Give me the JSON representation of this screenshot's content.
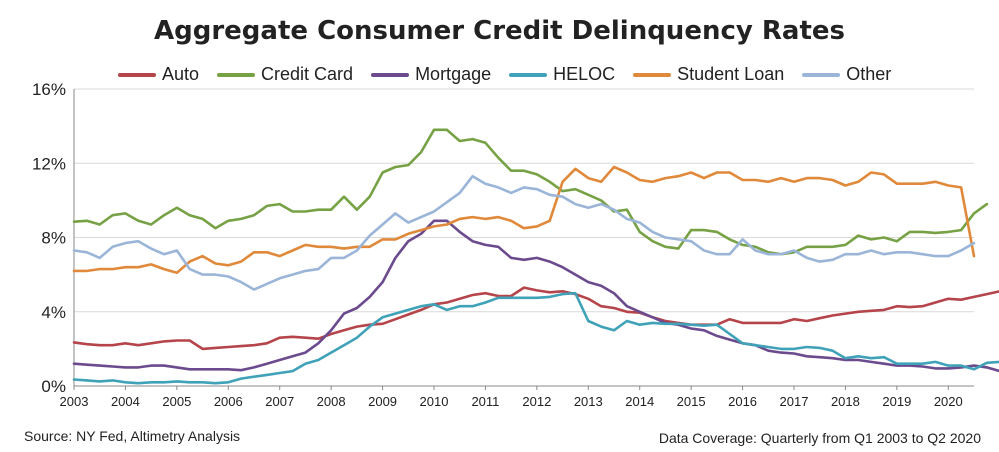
{
  "chart_data": {
    "type": "line",
    "title": "Aggregate Consumer Credit Delinquency Rates",
    "ylim": [
      0,
      16
    ],
    "yticks": [
      "0%",
      "4%",
      "8%",
      "12%",
      "16%"
    ],
    "ytick_values": [
      0,
      4,
      8,
      12,
      16
    ],
    "xticks": [
      "2003",
      "2004",
      "2005",
      "2006",
      "2007",
      "2008",
      "2009",
      "2010",
      "2011",
      "2012",
      "2013",
      "2014",
      "2015",
      "2016",
      "2017",
      "2018",
      "2019",
      "2020"
    ],
    "x_start": 2003.0,
    "x_end": 2020.5,
    "x_step": 0.25,
    "grid": "horizontal",
    "legend_position": "top",
    "series": [
      {
        "name": "Auto",
        "color": "#b5454b",
        "values": [
          2.35,
          2.25,
          2.2,
          2.2,
          2.3,
          2.2,
          2.3,
          2.4,
          2.45,
          2.45,
          2.0,
          2.05,
          2.1,
          2.15,
          2.2,
          2.3,
          2.6,
          2.65,
          2.6,
          2.55,
          2.8,
          3.0,
          3.2,
          3.3,
          3.35,
          3.6,
          3.85,
          4.1,
          4.4,
          4.5,
          4.7,
          4.9,
          5.0,
          4.85,
          4.85,
          5.3,
          5.15,
          5.05,
          5.1,
          4.95,
          4.7,
          4.3,
          4.2,
          4.0,
          3.95,
          3.7,
          3.5,
          3.4,
          3.3,
          3.3,
          3.3,
          3.6,
          3.4,
          3.4,
          3.4,
          3.4,
          3.6,
          3.5,
          3.65,
          3.8,
          3.9,
          4.0,
          4.05,
          4.1,
          4.3,
          4.25,
          4.3,
          4.5,
          4.7,
          4.65,
          4.8,
          4.95,
          5.1,
          5.05
        ]
      },
      {
        "name": "Credit Card",
        "color": "#77a145",
        "values": [
          8.85,
          8.9,
          8.7,
          9.2,
          9.3,
          8.9,
          8.7,
          9.2,
          9.6,
          9.2,
          9.0,
          8.5,
          8.9,
          9.0,
          9.2,
          9.7,
          9.8,
          9.4,
          9.4,
          9.5,
          9.5,
          10.2,
          9.5,
          10.2,
          11.5,
          11.8,
          11.9,
          12.6,
          13.8,
          13.8,
          13.2,
          13.3,
          13.1,
          12.3,
          11.6,
          11.6,
          11.4,
          11.0,
          10.5,
          10.6,
          10.3,
          10.0,
          9.4,
          9.5,
          8.3,
          7.8,
          7.5,
          7.4,
          8.4,
          8.4,
          8.3,
          7.9,
          7.6,
          7.5,
          7.2,
          7.1,
          7.2,
          7.5,
          7.5,
          7.5,
          7.6,
          8.1,
          7.9,
          8.0,
          7.8,
          8.3,
          8.3,
          8.25,
          8.3,
          8.4,
          9.3,
          9.8
        ]
      },
      {
        "name": "Mortgage",
        "color": "#6b4b8e",
        "values": [
          1.2,
          1.15,
          1.1,
          1.05,
          1.0,
          1.0,
          1.1,
          1.1,
          1.0,
          0.9,
          0.9,
          0.9,
          0.9,
          0.85,
          1.0,
          1.2,
          1.4,
          1.6,
          1.8,
          2.3,
          3.0,
          3.9,
          4.2,
          4.8,
          5.6,
          6.9,
          7.8,
          8.2,
          8.9,
          8.9,
          8.3,
          7.8,
          7.6,
          7.5,
          6.9,
          6.8,
          6.9,
          6.7,
          6.4,
          6.0,
          5.6,
          5.4,
          5.0,
          4.3,
          4.0,
          3.7,
          3.4,
          3.3,
          3.1,
          3.0,
          2.7,
          2.5,
          2.3,
          2.2,
          1.9,
          1.8,
          1.75,
          1.6,
          1.55,
          1.5,
          1.4,
          1.4,
          1.3,
          1.2,
          1.1,
          1.1,
          1.05,
          0.95,
          0.95,
          1.0,
          1.1,
          1.0,
          0.8
        ]
      },
      {
        "name": "HELOC",
        "color": "#3fa2b8",
        "values": [
          0.35,
          0.3,
          0.25,
          0.3,
          0.2,
          0.15,
          0.2,
          0.2,
          0.25,
          0.2,
          0.2,
          0.15,
          0.2,
          0.4,
          0.5,
          0.6,
          0.7,
          0.8,
          1.2,
          1.4,
          1.8,
          2.2,
          2.6,
          3.2,
          3.7,
          3.9,
          4.1,
          4.3,
          4.4,
          4.1,
          4.3,
          4.3,
          4.5,
          4.75,
          4.75,
          4.75,
          4.75,
          4.8,
          4.95,
          5.0,
          3.5,
          3.2,
          3.0,
          3.5,
          3.3,
          3.4,
          3.35,
          3.35,
          3.3,
          3.25,
          3.3,
          2.8,
          2.3,
          2.2,
          2.1,
          2.0,
          2.0,
          2.1,
          2.05,
          1.9,
          1.5,
          1.6,
          1.5,
          1.55,
          1.2,
          1.2,
          1.2,
          1.3,
          1.1,
          1.1,
          0.9,
          1.25,
          1.3
        ]
      },
      {
        "name": "Student Loan",
        "color": "#e0893a",
        "values": [
          6.2,
          6.2,
          6.3,
          6.3,
          6.4,
          6.4,
          6.55,
          6.3,
          6.1,
          6.7,
          7.0,
          6.6,
          6.5,
          6.7,
          7.2,
          7.2,
          7.0,
          7.3,
          7.6,
          7.5,
          7.5,
          7.4,
          7.5,
          7.5,
          7.9,
          7.9,
          8.2,
          8.4,
          8.6,
          8.7,
          9.0,
          9.1,
          9.0,
          9.1,
          8.9,
          8.5,
          8.6,
          8.9,
          11.0,
          11.7,
          11.2,
          11.0,
          11.8,
          11.5,
          11.1,
          11.0,
          11.2,
          11.3,
          11.5,
          11.2,
          11.5,
          11.5,
          11.1,
          11.1,
          11.0,
          11.2,
          11.0,
          11.2,
          11.2,
          11.1,
          10.8,
          11.0,
          11.5,
          11.4,
          10.9,
          10.9,
          10.9,
          11.0,
          10.8,
          10.7,
          7.0
        ]
      },
      {
        "name": "Other",
        "color": "#9ab5d8",
        "values": [
          7.3,
          7.2,
          6.9,
          7.5,
          7.7,
          7.8,
          7.4,
          7.1,
          7.3,
          6.3,
          6.0,
          6.0,
          5.9,
          5.6,
          5.2,
          5.5,
          5.8,
          6.0,
          6.2,
          6.3,
          6.9,
          6.9,
          7.3,
          8.1,
          8.7,
          9.3,
          8.8,
          9.1,
          9.4,
          9.9,
          10.4,
          11.3,
          10.9,
          10.7,
          10.4,
          10.7,
          10.6,
          10.3,
          10.2,
          9.8,
          9.6,
          9.8,
          9.5,
          9.0,
          8.8,
          8.3,
          8.0,
          7.9,
          7.8,
          7.3,
          7.1,
          7.1,
          7.9,
          7.3,
          7.1,
          7.1,
          7.3,
          6.9,
          6.7,
          6.8,
          7.1,
          7.1,
          7.3,
          7.1,
          7.2,
          7.2,
          7.1,
          7.0,
          7.0,
          7.3,
          7.7
        ]
      }
    ]
  },
  "footer": {
    "source": "Source: NY Fed, Altimetry Analysis",
    "coverage": "Data Coverage: Quarterly from Q1 2003 to Q2 2020"
  }
}
